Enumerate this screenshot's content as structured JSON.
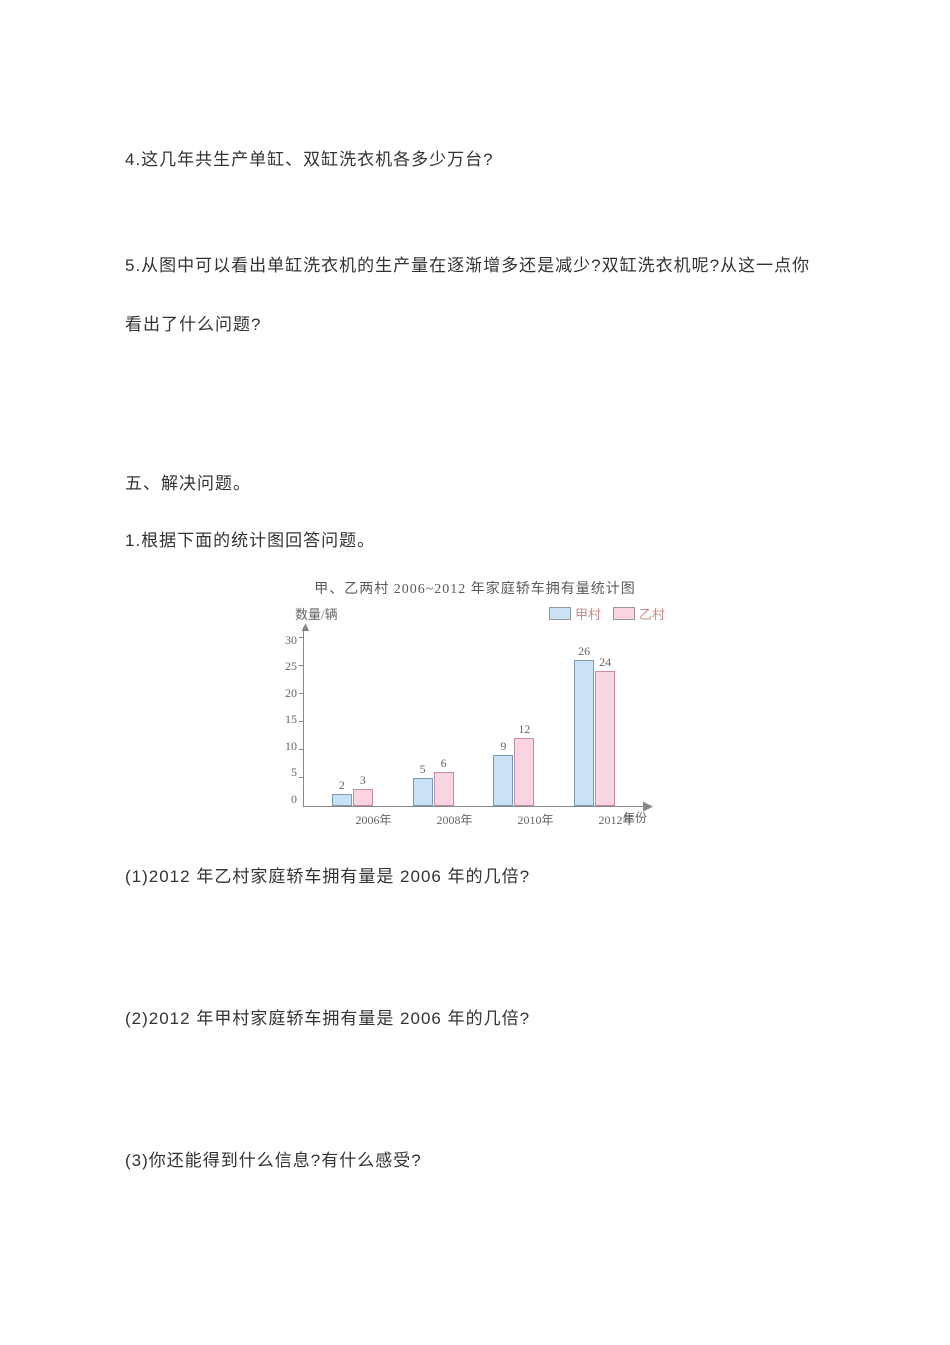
{
  "questions": {
    "q4": "4.这几年共生产单缸、双缸洗衣机各多少万台?",
    "q5": "5.从图中可以看出单缸洗衣机的生产量在逐渐增多还是减少?双缸洗衣机呢?从这一点你看出了什么问题?"
  },
  "section5": {
    "header": "五、解决问题。",
    "intro": "1.根据下面的统计图回答问题。"
  },
  "chart": {
    "title": "甲、乙两村 2006~2012 年家庭轿车拥有量统计图",
    "y_axis_label": "数量/辆",
    "x_axis_label": "年份",
    "legend": [
      {
        "label": "甲村",
        "color": "#c9e3f5"
      },
      {
        "label": "乙村",
        "color": "#f8d5e0"
      }
    ],
    "y_max": 30,
    "y_ticks": [
      30,
      25,
      20,
      15,
      10,
      5,
      0
    ],
    "categories": [
      "2006年",
      "2008年",
      "2010年",
      "2012年"
    ],
    "series_a": {
      "color": "#c9e3f5",
      "border": "#7a9bb5",
      "values": [
        2,
        5,
        9,
        26
      ]
    },
    "series_b": {
      "color": "#f8d5e0",
      "border": "#c88aa5",
      "values": [
        3,
        6,
        12,
        24
      ]
    },
    "bg": "#ffffff",
    "axis_color": "#888888"
  },
  "subq": {
    "sq1": "(1)2012 年乙村家庭轿车拥有量是 2006 年的几倍?",
    "sq2": "(2)2012 年甲村家庭轿车拥有量是 2006 年的几倍?",
    "sq3": "(3)你还能得到什么信息?有什么感受?"
  }
}
